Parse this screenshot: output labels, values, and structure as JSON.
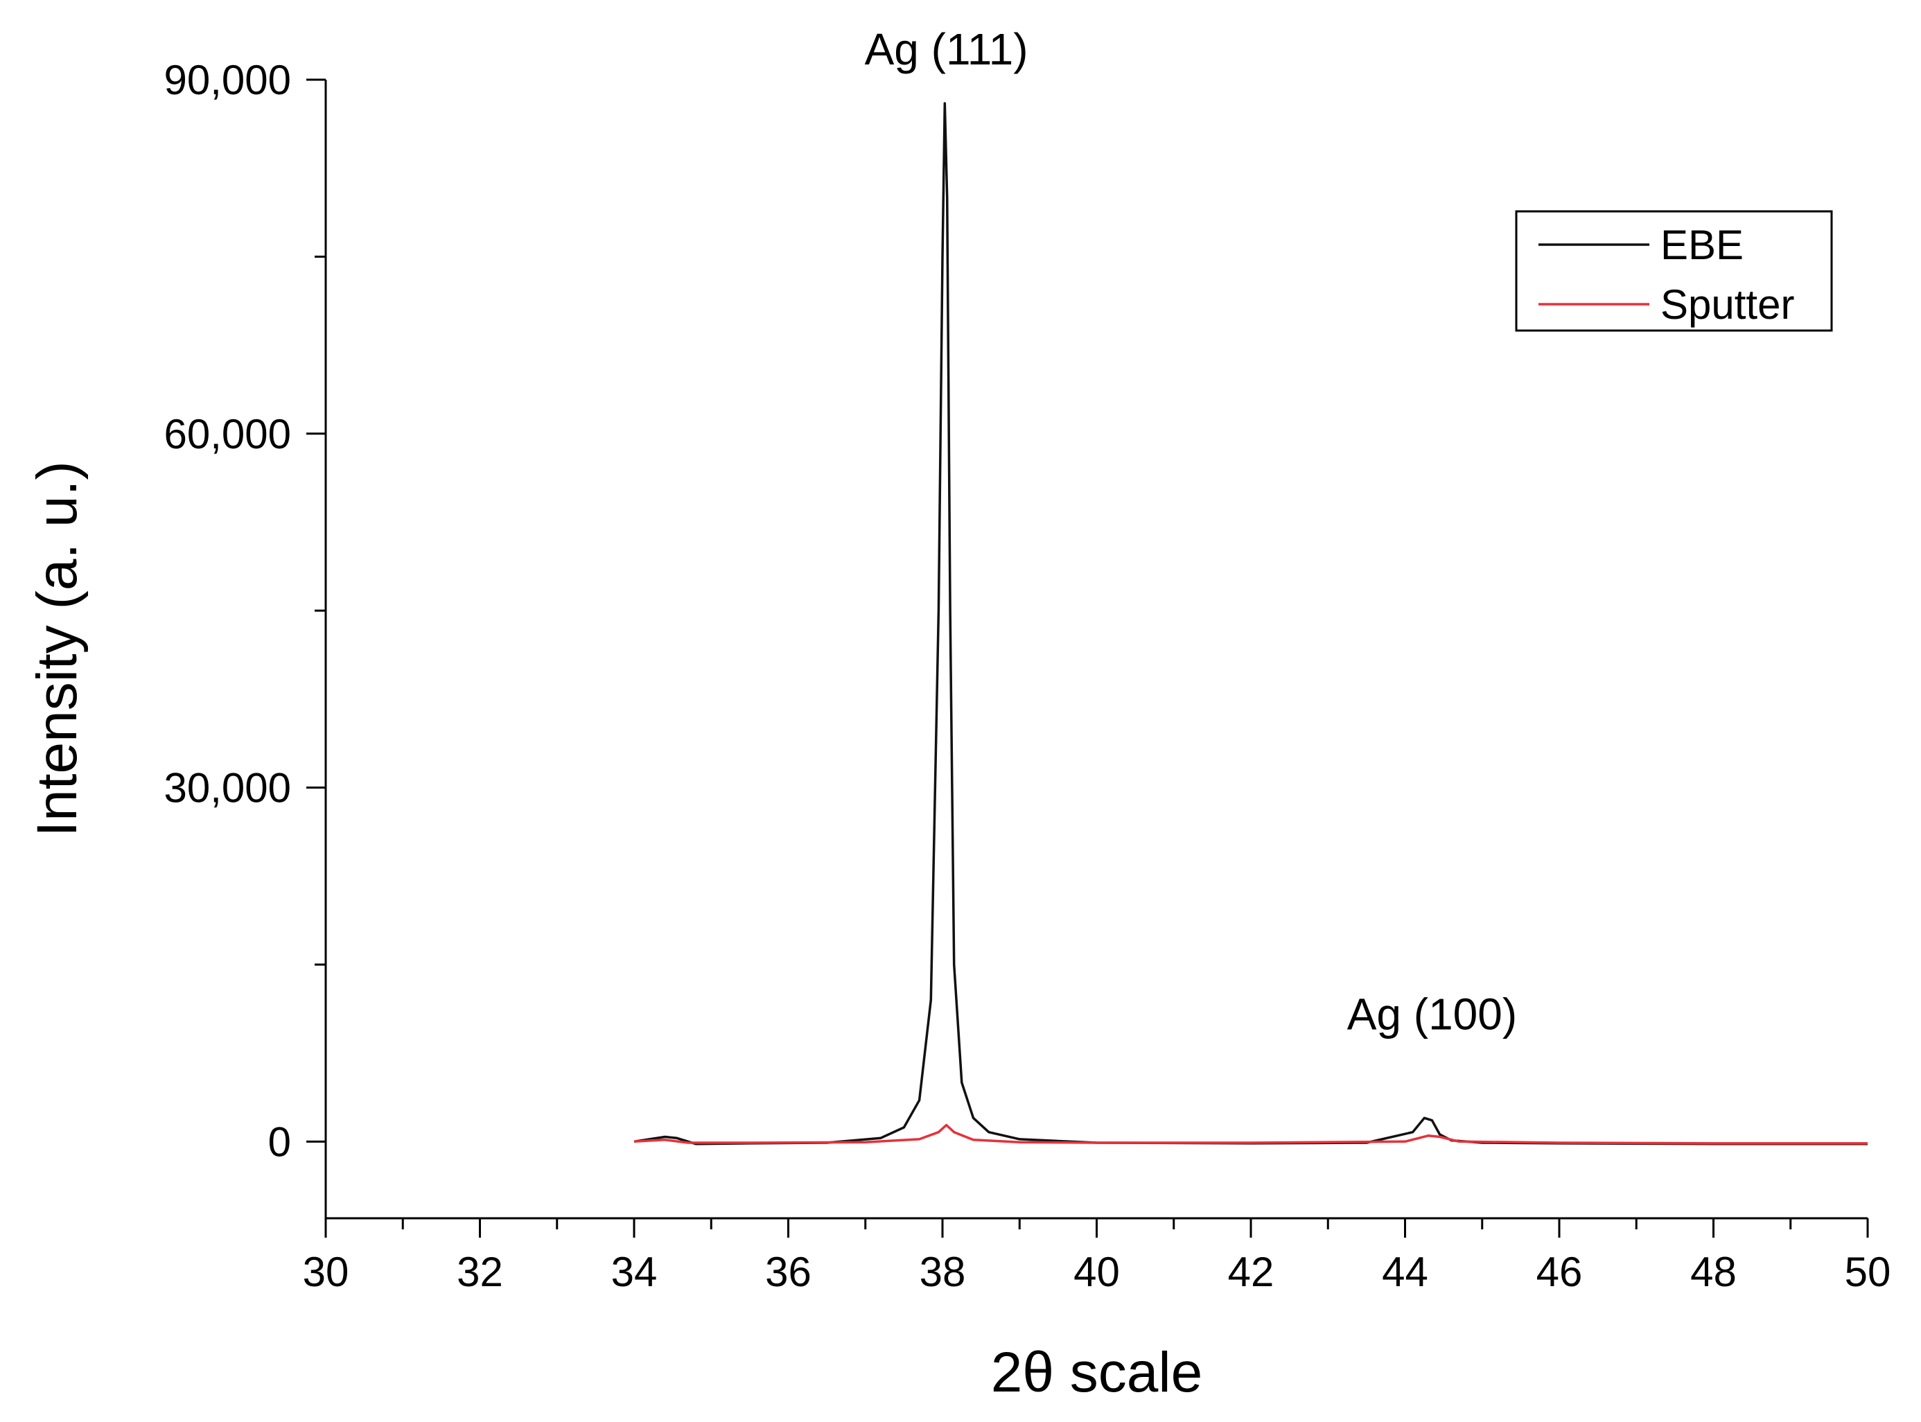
{
  "chart_data": {
    "type": "line",
    "title": "",
    "xlabel": "2θ scale",
    "ylabel": "Intensity (a. u.)",
    "xlim": [
      30,
      50
    ],
    "ylim": [
      -6500,
      90000
    ],
    "xticks": [
      30,
      32,
      34,
      36,
      38,
      40,
      42,
      44,
      46,
      48,
      50
    ],
    "xtick_labels": [
      "30",
      "32",
      "34",
      "36",
      "38",
      "40",
      "42",
      "44",
      "46",
      "48",
      "50"
    ],
    "yticks": [
      0,
      30000,
      60000,
      90000
    ],
    "ytick_labels": [
      "0",
      "30,000",
      "60,000",
      "90,000"
    ],
    "legend": {
      "placement": "top-right"
    },
    "series": [
      {
        "name": "EBE",
        "color": "#111111",
        "x": [
          34.0,
          34.2,
          34.4,
          34.55,
          34.7,
          34.8,
          35.5,
          36.5,
          37.2,
          37.5,
          37.7,
          37.85,
          37.95,
          38.0,
          38.03,
          38.06,
          38.1,
          38.15,
          38.25,
          38.4,
          38.6,
          39.0,
          40.0,
          42.0,
          43.5,
          44.1,
          44.25,
          44.35,
          44.45,
          44.6,
          45.0,
          46.0,
          48.0,
          50.0
        ],
        "y": [
          0,
          200,
          400,
          300,
          0,
          -200,
          -150,
          -100,
          300,
          1200,
          3500,
          12000,
          45000,
          75000,
          88000,
          80000,
          45000,
          15000,
          5000,
          2000,
          800,
          200,
          -100,
          -150,
          -100,
          800,
          2000,
          1800,
          600,
          100,
          -100,
          -150,
          -200,
          -200
        ]
      },
      {
        "name": "Sputter",
        "color": "#e8303a",
        "x": [
          34.0,
          34.4,
          34.7,
          35.5,
          37.0,
          37.7,
          37.95,
          38.05,
          38.15,
          38.4,
          39.0,
          40.0,
          42.0,
          44.0,
          44.3,
          44.45,
          44.7,
          46.0,
          48.0,
          50.0
        ],
        "y": [
          0,
          150,
          -100,
          -100,
          -50,
          200,
          800,
          1400,
          800,
          150,
          -50,
          -100,
          -100,
          0,
          500,
          400,
          0,
          -100,
          -150,
          -150
        ]
      }
    ],
    "annotations": [
      {
        "text": "Ag (111)",
        "x": 38.05,
        "y": 90000
      },
      {
        "text": "Ag (100)",
        "x": 44.35,
        "y": 8200
      }
    ]
  }
}
